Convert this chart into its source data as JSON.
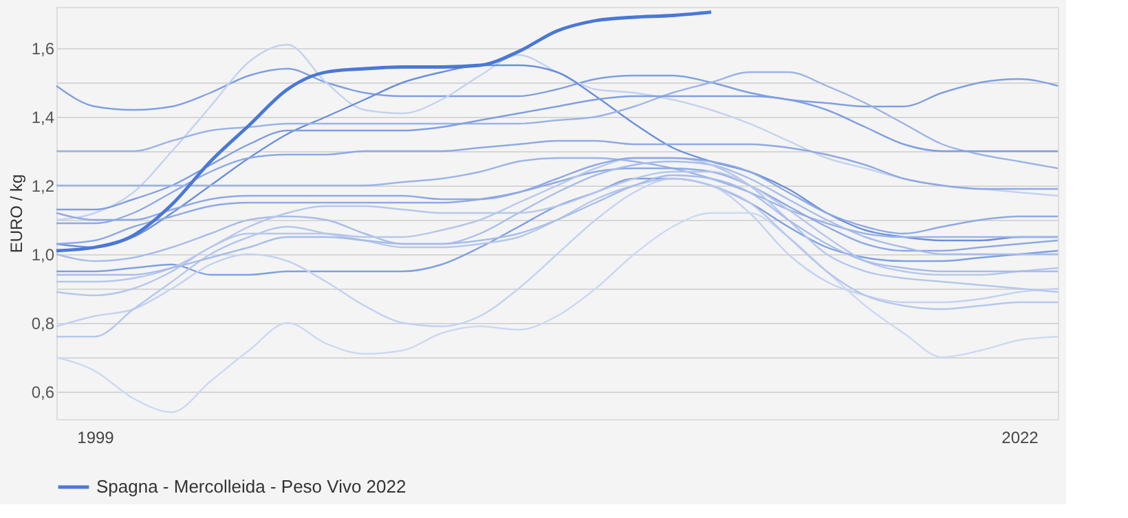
{
  "chart_data": {
    "type": "line",
    "ylabel": "EURO / kg",
    "categories": [
      null,
      "1999",
      null,
      null,
      null,
      null,
      null,
      null,
      null,
      null,
      null,
      null,
      null,
      null,
      null,
      null,
      null,
      null,
      null,
      null,
      null,
      null,
      null,
      null,
      null,
      "2022",
      null
    ],
    "ylim": [
      0.52,
      1.72
    ],
    "yticks": [
      {
        "value": 0.6,
        "label": "0,6"
      },
      {
        "value": 0.7,
        "label": null
      },
      {
        "value": 0.8,
        "label": "0,8"
      },
      {
        "value": 0.9,
        "label": null
      },
      {
        "value": 1.0,
        "label": "1,0"
      },
      {
        "value": 1.1,
        "label": null
      },
      {
        "value": 1.2,
        "label": "1,2"
      },
      {
        "value": 1.3,
        "label": null
      },
      {
        "value": 1.4,
        "label": "1,4"
      },
      {
        "value": 1.5,
        "label": null
      },
      {
        "value": 1.6,
        "label": "1,6"
      }
    ],
    "grid": "y",
    "legend": "bottom",
    "marker": "none",
    "line_style": "solid",
    "series": [
      {
        "color": "#7f9fe0",
        "values": [
          1.49,
          1.43,
          1.42,
          1.43,
          1.47,
          1.52,
          1.54,
          1.5,
          1.47,
          1.46,
          1.46,
          1.46,
          1.46,
          1.48,
          1.51,
          1.52,
          1.52,
          1.5,
          1.47,
          1.45,
          1.44,
          1.43,
          1.43,
          1.47,
          1.5,
          1.51,
          1.49
        ]
      },
      {
        "color": "#c3d2f1",
        "values": [
          1.1,
          1.12,
          1.18,
          1.3,
          1.43,
          1.56,
          1.61,
          1.5,
          1.42,
          1.41,
          1.45,
          1.52,
          1.58,
          1.53,
          1.48,
          1.47,
          1.45,
          1.42,
          1.38,
          1.33,
          1.28,
          1.25,
          1.22,
          1.2,
          1.19,
          1.18,
          1.17
        ]
      },
      {
        "color": "#6a8fdb",
        "values": [
          1.03,
          1.02,
          1.05,
          1.12,
          1.2,
          1.28,
          1.35,
          1.4,
          1.45,
          1.5,
          1.53,
          1.55,
          1.55,
          1.53,
          1.46,
          1.38,
          1.31,
          1.27,
          1.24,
          1.19,
          1.12,
          1.07,
          1.05,
          1.04,
          1.04,
          1.05,
          1.05
        ]
      },
      {
        "color": "#9bb3e7",
        "values": [
          1.3,
          1.3,
          1.3,
          1.33,
          1.36,
          1.37,
          1.38,
          1.38,
          1.38,
          1.38,
          1.38,
          1.38,
          1.38,
          1.39,
          1.4,
          1.43,
          1.47,
          1.5,
          1.53,
          1.53,
          1.49,
          1.44,
          1.38,
          1.32,
          1.29,
          1.27,
          1.25
        ]
      },
      {
        "color": "#7f9fe0",
        "values": [
          1.13,
          1.13,
          1.16,
          1.2,
          1.26,
          1.32,
          1.36,
          1.36,
          1.36,
          1.36,
          1.37,
          1.39,
          1.41,
          1.43,
          1.45,
          1.46,
          1.46,
          1.46,
          1.46,
          1.45,
          1.42,
          1.37,
          1.32,
          1.3,
          1.3,
          1.3,
          1.3
        ]
      },
      {
        "color": "#8ea9e3",
        "values": [
          1.09,
          1.09,
          1.12,
          1.18,
          1.24,
          1.28,
          1.29,
          1.29,
          1.3,
          1.3,
          1.3,
          1.31,
          1.32,
          1.33,
          1.33,
          1.32,
          1.32,
          1.32,
          1.32,
          1.31,
          1.29,
          1.26,
          1.22,
          1.2,
          1.19,
          1.19,
          1.19
        ]
      },
      {
        "color": "#9bb3e7",
        "values": [
          1.2,
          1.2,
          1.2,
          1.2,
          1.2,
          1.2,
          1.2,
          1.2,
          1.2,
          1.21,
          1.22,
          1.24,
          1.27,
          1.28,
          1.28,
          1.27,
          1.25,
          1.22,
          1.18,
          1.13,
          1.09,
          1.06,
          1.05,
          1.05,
          1.05,
          1.05,
          1.05
        ]
      },
      {
        "color": "#8ea9e3",
        "values": [
          1.03,
          1.04,
          1.08,
          1.11,
          1.14,
          1.15,
          1.15,
          1.15,
          1.15,
          1.15,
          1.15,
          1.16,
          1.18,
          1.21,
          1.24,
          1.25,
          1.25,
          1.24,
          1.2,
          1.14,
          1.08,
          1.03,
          1.01,
          1.01,
          1.02,
          1.03,
          1.04
        ]
      },
      {
        "color": "#7f9fe0",
        "values": [
          0.95,
          0.95,
          0.96,
          0.97,
          0.94,
          0.94,
          0.95,
          0.95,
          0.95,
          0.95,
          0.97,
          1.02,
          1.08,
          1.14,
          1.18,
          1.22,
          1.22,
          1.2,
          1.15,
          1.08,
          1.02,
          0.99,
          0.98,
          0.98,
          0.99,
          1.0,
          1.01
        ]
      },
      {
        "color": "#c3d2f1",
        "values": [
          0.79,
          0.82,
          0.84,
          0.9,
          0.97,
          1.0,
          0.98,
          0.92,
          0.85,
          0.8,
          0.79,
          0.82,
          0.9,
          1.0,
          1.1,
          1.18,
          1.22,
          1.2,
          1.12,
          1.0,
          0.92,
          0.88,
          0.86,
          0.86,
          0.87,
          0.89,
          0.9
        ]
      },
      {
        "color": "#ccd8f3",
        "values": [
          0.7,
          0.66,
          0.58,
          0.54,
          0.63,
          0.72,
          0.8,
          0.74,
          0.71,
          0.72,
          0.77,
          0.79,
          0.78,
          0.82,
          0.9,
          1.0,
          1.08,
          1.12,
          1.12,
          1.05,
          0.95,
          0.85,
          0.77,
          0.7,
          0.72,
          0.75,
          0.76
        ]
      },
      {
        "color": "#b5c7ec",
        "values": [
          0.76,
          0.76,
          0.84,
          0.92,
          1.0,
          1.05,
          1.08,
          1.06,
          1.04,
          1.02,
          1.02,
          1.03,
          1.05,
          1.1,
          1.16,
          1.2,
          1.22,
          1.2,
          1.15,
          1.05,
          0.95,
          0.88,
          0.85,
          0.84,
          0.85,
          0.86,
          0.86
        ]
      },
      {
        "color": "#a7bdea",
        "values": [
          1.0,
          0.98,
          0.99,
          1.02,
          1.06,
          1.1,
          1.11,
          1.1,
          1.06,
          1.03,
          1.03,
          1.06,
          1.12,
          1.18,
          1.23,
          1.26,
          1.27,
          1.26,
          1.22,
          1.16,
          1.1,
          1.05,
          1.02,
          1.0,
          1.0,
          1.0,
          1.0
        ]
      },
      {
        "color": "#b5c7ec",
        "values": [
          0.92,
          0.92,
          0.93,
          0.96,
          1.02,
          1.08,
          1.12,
          1.14,
          1.14,
          1.13,
          1.12,
          1.12,
          1.12,
          1.14,
          1.18,
          1.22,
          1.24,
          1.24,
          1.2,
          1.13,
          1.05,
          0.98,
          0.95,
          0.94,
          0.94,
          0.95,
          0.96
        ]
      },
      {
        "color": "#b5c7ec",
        "values": [
          0.89,
          0.88,
          0.9,
          0.95,
          1.02,
          1.06,
          1.06,
          1.06,
          1.05,
          1.05,
          1.07,
          1.1,
          1.15,
          1.2,
          1.25,
          1.28,
          1.28,
          1.26,
          1.2,
          1.1,
          1.0,
          0.95,
          0.93,
          0.92,
          0.91,
          0.9,
          0.89
        ]
      },
      {
        "color": "#8ea9e3",
        "values": [
          1.12,
          1.1,
          1.1,
          1.13,
          1.16,
          1.17,
          1.17,
          1.17,
          1.17,
          1.17,
          1.16,
          1.16,
          1.18,
          1.22,
          1.26,
          1.28,
          1.28,
          1.27,
          1.24,
          1.18,
          1.12,
          1.08,
          1.06,
          1.08,
          1.1,
          1.11,
          1.11
        ]
      },
      {
        "color": "#a7bdea",
        "values": [
          0.94,
          0.94,
          0.94,
          0.96,
          0.99,
          1.02,
          1.05,
          1.05,
          1.04,
          1.03,
          1.03,
          1.04,
          1.06,
          1.1,
          1.15,
          1.2,
          1.23,
          1.22,
          1.18,
          1.1,
          1.03,
          0.98,
          0.96,
          0.95,
          0.95,
          0.95,
          0.95
        ]
      },
      {
        "name": "Spagna - Mercolleida - Peso Vivo 2022",
        "color": "#4a78d6",
        "values": [
          1.01,
          1.02,
          1.055,
          1.145,
          1.27,
          1.375,
          1.48,
          1.53,
          1.54,
          1.545,
          1.545,
          1.55,
          1.59,
          1.65,
          1.68,
          1.69,
          1.695,
          1.705,
          null,
          null,
          null,
          null,
          null,
          null,
          null,
          null,
          null
        ]
      }
    ]
  }
}
